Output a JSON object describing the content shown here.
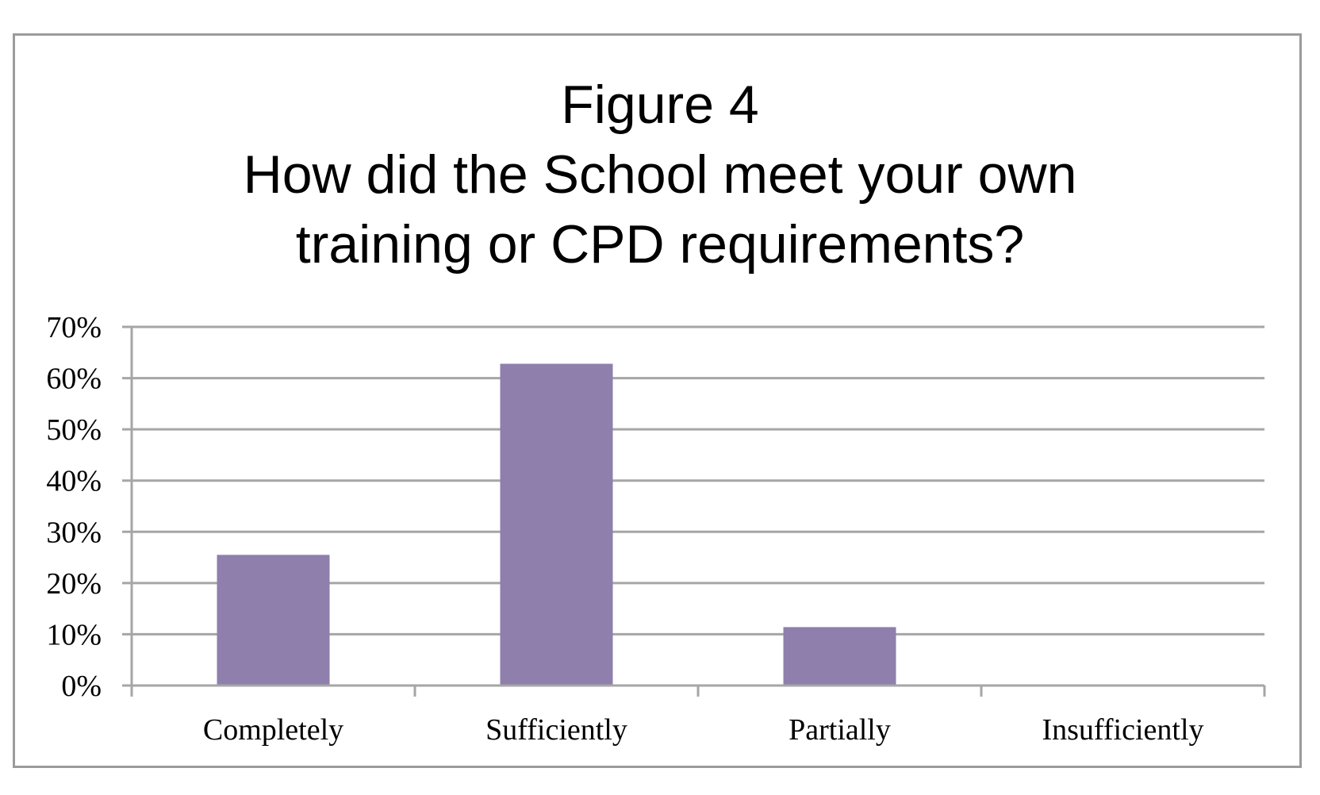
{
  "chart_data": {
    "type": "bar",
    "title_lines": [
      "Figure 4",
      "How did the School meet your own",
      "training or CPD requirements?"
    ],
    "categories": [
      "Completely",
      "Sufficiently",
      "Partially",
      "Insufficiently"
    ],
    "values": [
      25.5,
      62.8,
      11.4,
      0
    ],
    "xlabel": "",
    "ylabel": "",
    "ylim": [
      0,
      70
    ],
    "yticks": [
      0,
      10,
      20,
      30,
      40,
      50,
      60,
      70
    ],
    "ytick_labels": [
      "0%",
      "10%",
      "20%",
      "30%",
      "40%",
      "50%",
      "60%",
      "70%"
    ],
    "grid": true,
    "legend": "none",
    "bar_color": "#8e7fad",
    "grid_color": "#a6a6a6"
  }
}
